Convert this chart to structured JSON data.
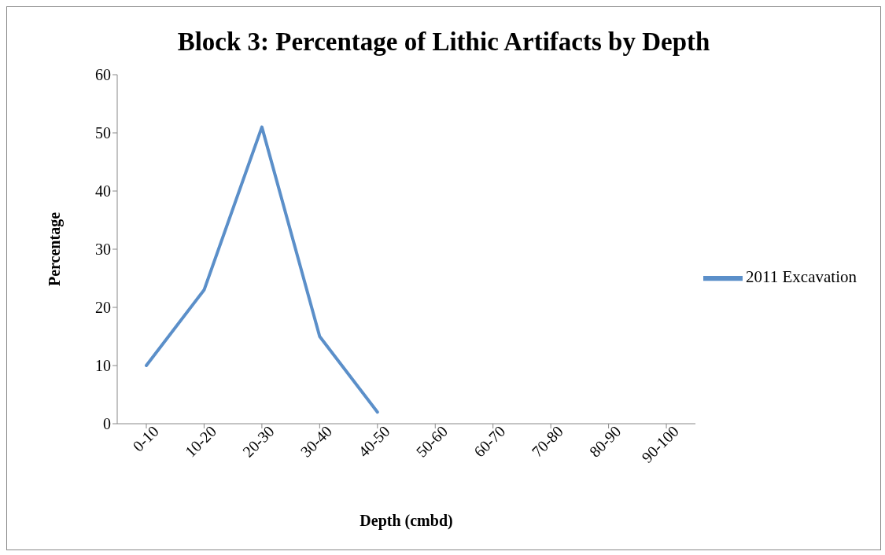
{
  "chart_data": {
    "type": "line",
    "title": "Block 3: Percentage of Lithic Artifacts by Depth",
    "xlabel": "Depth (cmbd)",
    "ylabel": "Percentage",
    "categories": [
      "0-10",
      "10-20",
      "20-30",
      "30-40",
      "40-50",
      "50-60",
      "60-70",
      "70-80",
      "80-90",
      "90-100"
    ],
    "series": [
      {
        "name": "2011 Excavation",
        "color": "#5b8fc9",
        "values": [
          10,
          23,
          51,
          15,
          2,
          null,
          null,
          null,
          null,
          null
        ]
      }
    ],
    "ylim": [
      0,
      60
    ],
    "yticks": [
      0,
      10,
      20,
      30,
      40,
      50,
      60
    ],
    "grid": false,
    "legend": "right",
    "marker": "none",
    "line_style": "solid"
  }
}
